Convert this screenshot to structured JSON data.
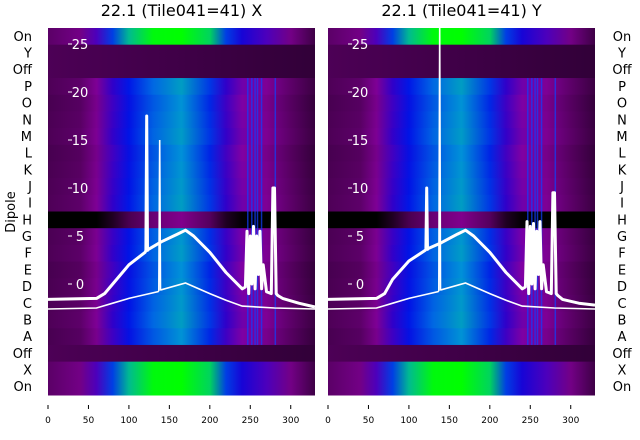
{
  "chart_data": {
    "type": "heatmap",
    "ylabel": "Dipole",
    "row_labels": [
      "On",
      "Y",
      "Off",
      "P",
      "O",
      "N",
      "M",
      "L",
      "K",
      "J",
      "I",
      "H",
      "G",
      "F",
      "E",
      "D",
      "C",
      "B",
      "A",
      "Off",
      "X",
      "On"
    ],
    "row_kinds": [
      "on",
      "off",
      "off",
      "sig",
      "sig",
      "sig",
      "sig",
      "sig",
      "sig",
      "sig",
      "sig",
      "h",
      "sig",
      "sig",
      "sig",
      "sig",
      "sig",
      "sig",
      "sig",
      "off",
      "on",
      "on"
    ],
    "x_ticks": [
      0,
      50,
      100,
      150,
      200,
      250,
      300
    ],
    "xlim": [
      0,
      330
    ],
    "overlay_ticks": [
      0,
      5,
      10,
      15,
      20,
      25
    ],
    "overlay_ylim": [
      -10.5,
      27.5
    ],
    "column_profile": {
      "x": [
        0,
        40,
        60,
        80,
        100,
        130,
        165,
        200,
        220,
        240,
        270,
        300,
        330
      ],
      "v": [
        0.15,
        0.2,
        0.3,
        0.45,
        0.58,
        0.68,
        0.76,
        0.62,
        0.45,
        0.36,
        0.3,
        0.2,
        0.08
      ]
    },
    "panels": [
      {
        "title": "22.1 (Tile041=41) X",
        "label_side": "left",
        "thick": {
          "x": [
            0,
            60,
            70,
            80,
            100,
            120,
            121,
            122,
            123,
            124,
            140,
            160,
            170,
            180,
            200,
            220,
            240,
            244,
            246,
            248,
            250,
            252,
            254,
            256,
            258,
            260,
            262,
            264,
            266,
            270,
            276,
            278,
            280,
            282,
            284,
            290,
            310,
            330
          ],
          "y": [
            -1.6,
            -1.5,
            -1,
            0,
            2,
            3.3,
            3.5,
            17.5,
            3.5,
            3.6,
            4.4,
            5.2,
            5.6,
            5,
            3.3,
            1.2,
            -0.5,
            -0.3,
            5.5,
            -1,
            5,
            0,
            6,
            -0.5,
            5,
            1,
            5.5,
            -0.5,
            2,
            -0.8,
            -1,
            10,
            10,
            -1,
            -1.2,
            -1.5,
            -2,
            -2.4
          ]
        },
        "thin": {
          "x": [
            0,
            60,
            80,
            100,
            120,
            136,
            137,
            138,
            139,
            140,
            170,
            200,
            220,
            240,
            280,
            330
          ],
          "y": [
            -2.6,
            -2.5,
            -2,
            -1.5,
            -1.1,
            -0.8,
            -0.7,
            15,
            -0.6,
            -0.6,
            0.1,
            -1,
            -1.7,
            -2.3,
            -2.5,
            -2.6
          ]
        }
      },
      {
        "title": "22.1 (Tile041=41) Y",
        "label_side": "right",
        "thick": {
          "x": [
            0,
            60,
            70,
            80,
            100,
            120,
            121,
            122,
            123,
            124,
            140,
            160,
            170,
            180,
            200,
            220,
            240,
            244,
            246,
            248,
            250,
            252,
            254,
            256,
            258,
            260,
            262,
            264,
            266,
            270,
            276,
            278,
            280,
            282,
            284,
            290,
            310,
            330
          ],
          "y": [
            -1.6,
            -1.5,
            -1,
            0.5,
            2.4,
            3.5,
            3.6,
            10,
            3.6,
            3.7,
            4.3,
            5.2,
            5.6,
            5,
            3.3,
            1.2,
            -0.5,
            -0.3,
            6.5,
            -1,
            6,
            0,
            6.3,
            -0.5,
            5.5,
            1,
            6.5,
            -0.5,
            2,
            -0.8,
            -1,
            9.5,
            9.5,
            -1,
            -1.2,
            -1.6,
            -2,
            -2.2
          ]
        },
        "thin": {
          "x": [
            0,
            60,
            80,
            100,
            120,
            136,
            137,
            138,
            139,
            140,
            170,
            200,
            220,
            240,
            280,
            330
          ],
          "y": [
            -2.6,
            -2.5,
            -2,
            -1.5,
            -1.1,
            -0.8,
            -0.7,
            30,
            -0.6,
            -0.6,
            0.1,
            -1,
            -1.7,
            -2.3,
            -2.5,
            -2.6
          ]
        }
      }
    ]
  }
}
